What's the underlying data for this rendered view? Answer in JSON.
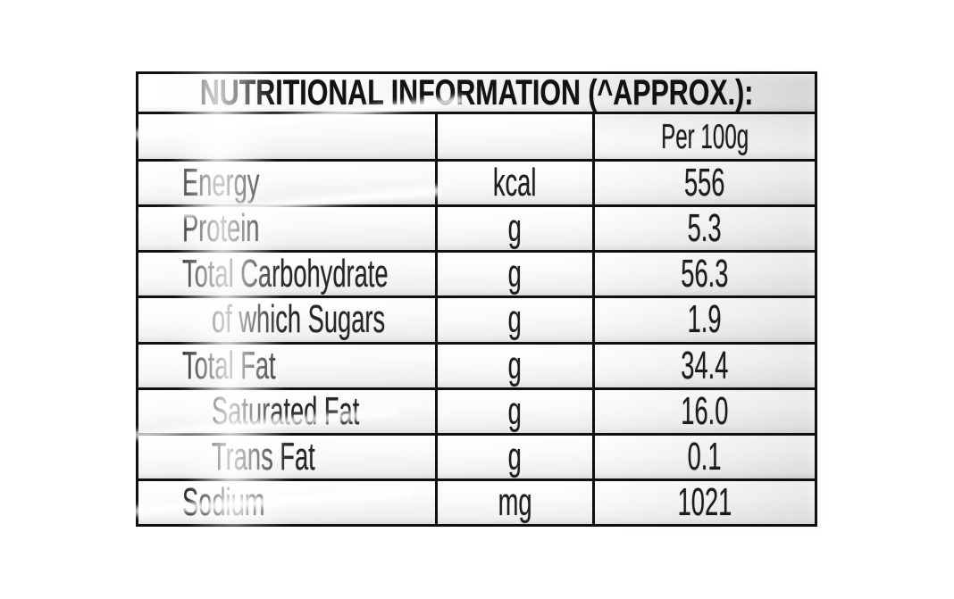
{
  "header": {
    "title": "NUTRITIONAL INFORMATION (^APPROX.):"
  },
  "table": {
    "column_headers": {
      "nutrient": "",
      "unit": "",
      "amount": "Per 100g"
    },
    "rows": [
      {
        "label": "Energy",
        "unit": "kcal",
        "amount": "556",
        "indented": false
      },
      {
        "label": "Protein",
        "unit": "g",
        "amount": "5.3",
        "indented": false
      },
      {
        "label": "Total Carbohydrate",
        "unit": "g",
        "amount": "56.3",
        "indented": false
      },
      {
        "label": "of which Sugars",
        "unit": "g",
        "amount": "1.9",
        "indented": true
      },
      {
        "label": "Total Fat",
        "unit": "g",
        "amount": "34.4",
        "indented": false
      },
      {
        "label": "Saturated Fat",
        "unit": "g",
        "amount": "16.0",
        "indented": true
      },
      {
        "label": "Trans Fat",
        "unit": "g",
        "amount": "0.1",
        "indented": true
      },
      {
        "label": "Sodium",
        "unit": "mg",
        "amount": "1021",
        "indented": false
      }
    ]
  },
  "colors": {
    "border": "#101010",
    "text": "#1d1d1d",
    "background": "#ffffff",
    "cell_tint": "#ebebeb"
  }
}
